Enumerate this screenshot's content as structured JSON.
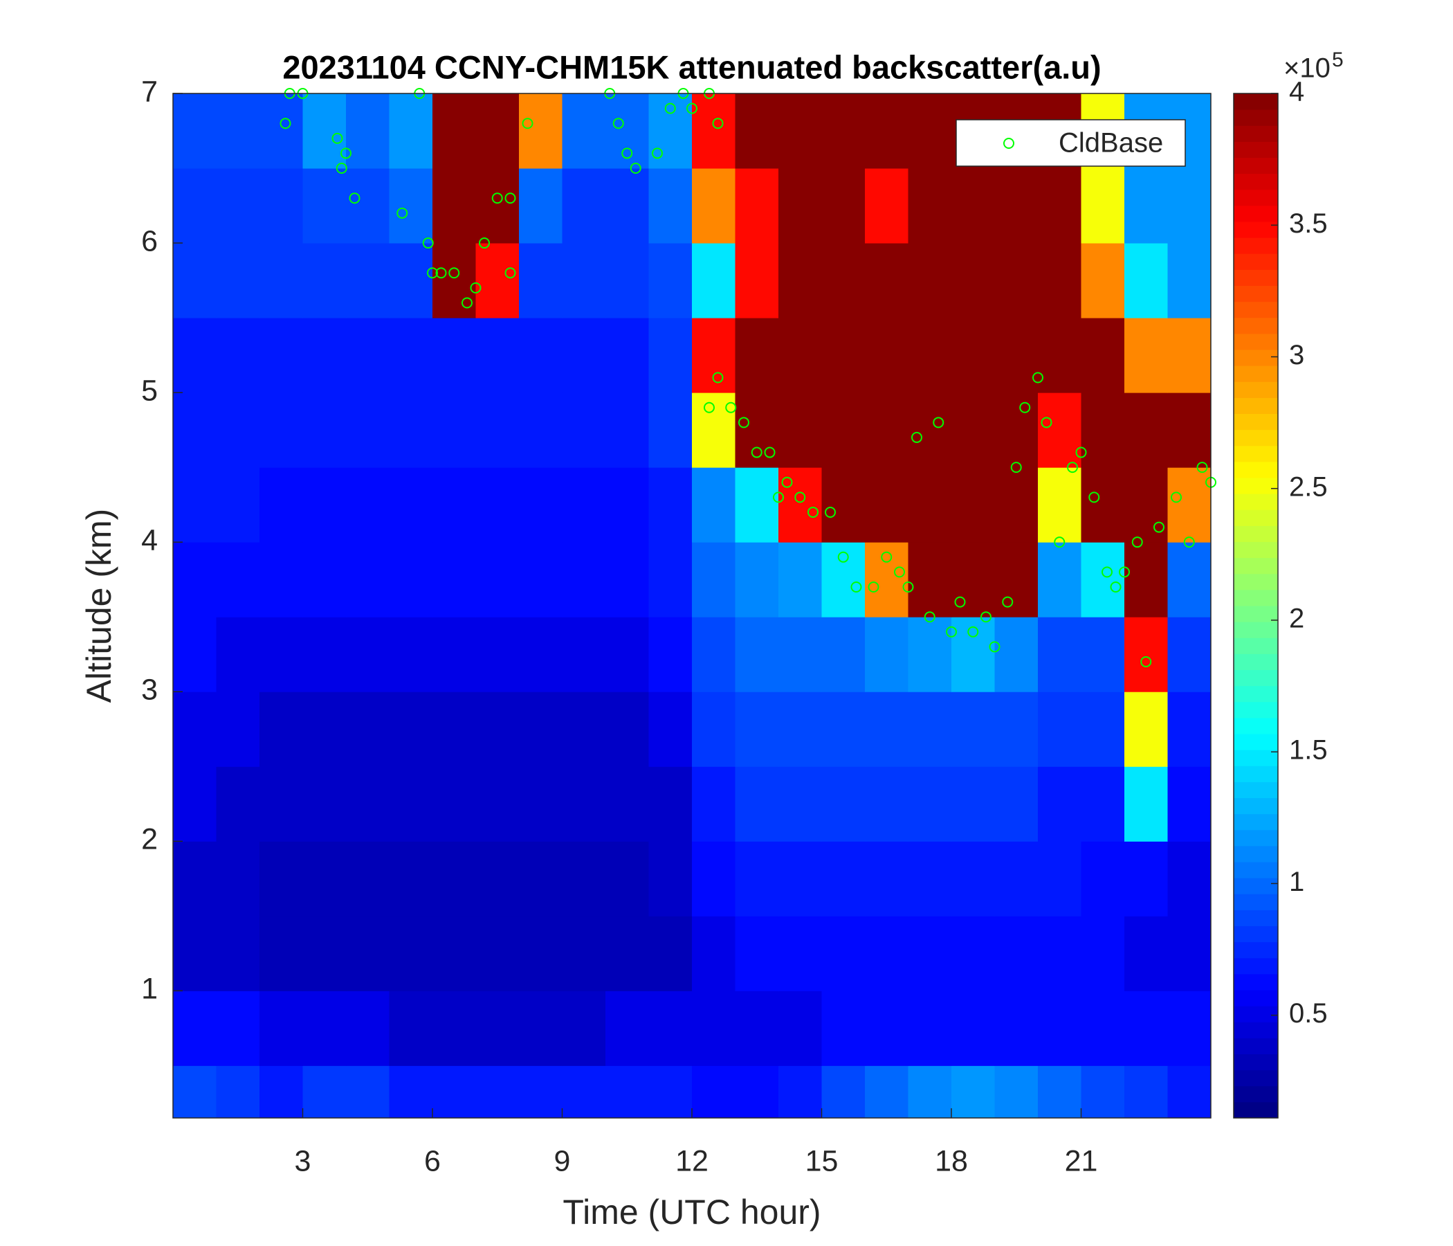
{
  "chart_data": {
    "type": "heatmap",
    "title": "20231104 CCNY-CHM15K attenuated backscatter(a.u)",
    "x_label": "Time (UTC hour)",
    "y_label": "Altitude (km)",
    "xlim": [
      0,
      24
    ],
    "ylim": [
      0.15,
      7
    ],
    "xticks": [
      3,
      6,
      9,
      12,
      15,
      18,
      21
    ],
    "yticks": [
      1,
      2,
      3,
      4,
      5,
      6,
      7
    ],
    "colormap": "jet",
    "clim": [
      0.11,
      4
    ],
    "cticks": [
      0.5,
      1,
      1.5,
      2,
      2.5,
      3,
      3.5,
      4
    ],
    "colorbar_multiplier": {
      "base": "×10",
      "exponent": "5"
    },
    "x_bins": [
      0,
      1,
      2,
      3,
      4,
      5,
      6,
      7,
      8,
      9,
      10,
      11,
      12,
      13,
      14,
      15,
      16,
      17,
      18,
      19,
      20,
      21,
      22,
      23,
      24
    ],
    "y_bins": [
      0.15,
      0.5,
      1,
      1.5,
      2,
      2.5,
      3,
      3.5,
      4,
      4.5,
      5,
      5.5,
      6,
      6.5,
      7
    ],
    "z": [
      [
        0.9,
        0.8,
        0.7,
        0.8,
        0.8,
        0.7,
        0.7,
        0.7,
        0.7,
        0.7,
        0.7,
        0.7,
        0.6,
        0.6,
        0.7,
        0.9,
        1.0,
        1.1,
        1.2,
        1.1,
        1.0,
        0.9,
        0.8,
        0.7
      ],
      [
        0.6,
        0.6,
        0.5,
        0.5,
        0.5,
        0.4,
        0.4,
        0.4,
        0.4,
        0.4,
        0.5,
        0.5,
        0.5,
        0.5,
        0.5,
        0.6,
        0.6,
        0.6,
        0.6,
        0.6,
        0.6,
        0.6,
        0.6,
        0.6
      ],
      [
        0.4,
        0.4,
        0.3,
        0.3,
        0.3,
        0.3,
        0.3,
        0.3,
        0.3,
        0.3,
        0.3,
        0.3,
        0.5,
        0.6,
        0.6,
        0.6,
        0.6,
        0.6,
        0.6,
        0.6,
        0.6,
        0.6,
        0.5,
        0.5
      ],
      [
        0.4,
        0.4,
        0.3,
        0.3,
        0.3,
        0.3,
        0.3,
        0.3,
        0.3,
        0.3,
        0.3,
        0.4,
        0.6,
        0.7,
        0.7,
        0.7,
        0.7,
        0.7,
        0.7,
        0.7,
        0.7,
        0.6,
        0.6,
        0.5
      ],
      [
        0.5,
        0.4,
        0.4,
        0.4,
        0.4,
        0.4,
        0.4,
        0.4,
        0.4,
        0.4,
        0.4,
        0.4,
        0.7,
        0.8,
        0.8,
        0.8,
        0.8,
        0.8,
        0.8,
        0.8,
        0.7,
        0.7,
        1.5,
        0.6
      ],
      [
        0.5,
        0.5,
        0.4,
        0.4,
        0.4,
        0.4,
        0.4,
        0.4,
        0.4,
        0.4,
        0.4,
        0.5,
        0.8,
        0.9,
        0.9,
        0.9,
        0.9,
        0.9,
        0.9,
        0.9,
        0.8,
        0.8,
        2.5,
        0.7
      ],
      [
        0.6,
        0.5,
        0.5,
        0.5,
        0.5,
        0.5,
        0.5,
        0.5,
        0.5,
        0.5,
        0.5,
        0.6,
        0.9,
        1.0,
        1.0,
        1.0,
        1.1,
        1.2,
        1.3,
        1.1,
        0.9,
        0.9,
        3.5,
        0.8
      ],
      [
        0.6,
        0.6,
        0.6,
        0.6,
        0.6,
        0.6,
        0.6,
        0.6,
        0.6,
        0.6,
        0.6,
        0.7,
        1.0,
        1.1,
        1.2,
        1.5,
        3.0,
        4,
        4,
        4,
        1.2,
        1.5,
        4,
        1.0
      ],
      [
        0.7,
        0.7,
        0.6,
        0.6,
        0.6,
        0.6,
        0.6,
        0.6,
        0.6,
        0.6,
        0.6,
        0.7,
        1.1,
        1.5,
        3.5,
        4,
        4,
        4,
        4,
        4,
        2.5,
        4,
        4,
        3.0
      ],
      [
        0.7,
        0.7,
        0.7,
        0.7,
        0.7,
        0.7,
        0.7,
        0.7,
        0.7,
        0.7,
        0.7,
        0.8,
        2.5,
        4,
        4,
        4,
        4,
        4,
        4,
        4,
        3.5,
        4,
        4,
        4
      ],
      [
        0.7,
        0.7,
        0.7,
        0.7,
        0.7,
        0.7,
        0.7,
        0.7,
        0.7,
        0.7,
        0.7,
        0.8,
        3.5,
        4,
        4,
        4,
        4,
        4,
        4,
        4,
        4,
        4,
        3.0,
        3.0
      ],
      [
        0.8,
        0.8,
        0.8,
        0.8,
        0.8,
        0.8,
        4,
        3.5,
        0.8,
        0.8,
        0.8,
        0.9,
        1.5,
        3.5,
        4,
        4,
        4,
        4,
        4,
        4,
        4,
        3.0,
        1.5,
        1.2
      ],
      [
        0.8,
        0.8,
        0.8,
        0.9,
        0.9,
        1.0,
        4,
        4,
        1.0,
        0.8,
        0.8,
        1.0,
        3.0,
        3.5,
        4,
        4,
        3.5,
        4,
        4,
        4,
        4,
        2.5,
        1.2,
        1.2
      ],
      [
        0.9,
        0.9,
        0.9,
        1.2,
        1.0,
        1.2,
        4,
        4,
        3.0,
        1.0,
        1.0,
        1.2,
        3.5,
        4,
        4,
        4,
        4,
        4,
        4,
        4,
        4,
        2.5,
        1.2,
        1.2
      ]
    ],
    "series": [
      {
        "type": "scatter",
        "name": "CldBase",
        "color": "#00ff00",
        "x": [
          2.6,
          2.7,
          3.0,
          3.8,
          3.9,
          4.0,
          4.2,
          5.3,
          5.7,
          5.9,
          6.0,
          6.2,
          6.5,
          6.8,
          7.0,
          7.2,
          7.5,
          7.8,
          7.8,
          8.2,
          10.1,
          10.3,
          10.5,
          10.7,
          11.2,
          11.5,
          11.8,
          12.0,
          12.4,
          12.6,
          12.4,
          12.6,
          12.9,
          13.2,
          13.5,
          13.8,
          14.0,
          14.2,
          14.5,
          14.8,
          15.2,
          15.5,
          15.8,
          16.2,
          16.5,
          16.8,
          17.0,
          17.2,
          17.5,
          17.7,
          18.0,
          18.2,
          18.5,
          18.8,
          19.0,
          19.3,
          19.5,
          19.7,
          20.0,
          20.2,
          20.5,
          20.8,
          21.0,
          21.3,
          21.6,
          21.8,
          22.0,
          22.3,
          22.5,
          22.8,
          23.2,
          23.5,
          23.8,
          24.0
        ],
        "y": [
          6.8,
          7.0,
          7.0,
          6.7,
          6.5,
          6.6,
          6.3,
          6.2,
          7.0,
          6.0,
          5.8,
          5.8,
          5.8,
          5.6,
          5.7,
          6.0,
          6.3,
          6.3,
          5.8,
          6.8,
          7.0,
          6.8,
          6.6,
          6.5,
          6.6,
          6.9,
          7.0,
          6.9,
          7.0,
          6.8,
          4.9,
          5.1,
          4.9,
          4.8,
          4.6,
          4.6,
          4.3,
          4.4,
          4.3,
          4.2,
          4.2,
          3.9,
          3.7,
          3.7,
          3.9,
          3.8,
          3.7,
          4.7,
          3.5,
          4.8,
          3.4,
          3.6,
          3.4,
          3.5,
          3.3,
          3.6,
          4.5,
          4.9,
          5.1,
          4.8,
          4.0,
          4.5,
          4.6,
          4.3,
          3.8,
          3.7,
          3.8,
          4.0,
          3.2,
          4.1,
          4.3,
          4.0,
          4.5,
          4.4
        ]
      }
    ]
  }
}
